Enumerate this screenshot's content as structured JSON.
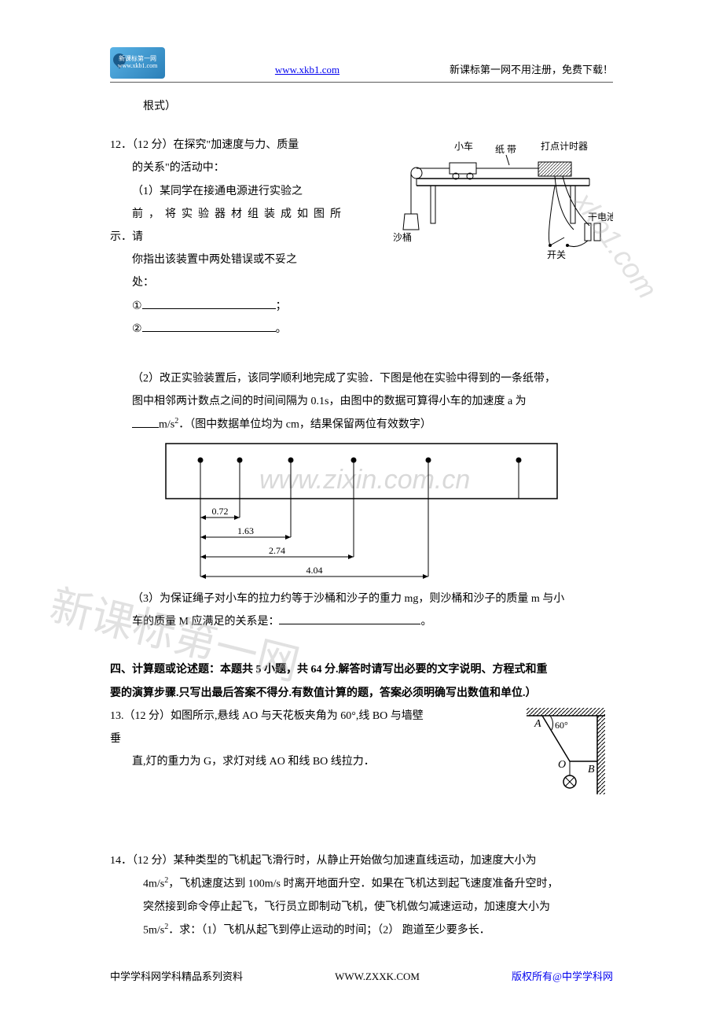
{
  "header": {
    "link": "www.xkb1.com",
    "right_text": "新课标第一网不用注册，免费下载！",
    "logo_top": "新课标第一网",
    "logo_bottom": "www.xkb1.com"
  },
  "line_genstyle": "根式）",
  "q12": {
    "title": "12．（12 分）在探究\"加速度与力、质量",
    "l2": "的关系\"的活动中：",
    "l3": "（1）某同学在接通电源进行实验之",
    "l4_a": "前",
    "l4_b": "，",
    "l4_c": "将",
    "l4_d": "实",
    "l4_e": "验",
    "l4_f": "器",
    "l4_g": "材",
    "l4_h": "组",
    "l4_i": "装",
    "l4_j": "成",
    "l4_k": "如",
    "l4_l": "图",
    "l4_m": "所",
    "l5a": "示．请",
    "l6": "你指出该装置中两处错误或不妥之",
    "l7": "处：",
    "l8": "①",
    "l8_end": "；",
    "l9": "②",
    "l9_end": "。",
    "part2_l1": "（2）改正实验装置后，该同学顺利地完成了实验．下图是他在实验中得到的一条纸带，",
    "part2_l2": "图中相邻两计数点之间的时间间隔为 0.1s，由图中的数据可算得小车的加速度 a 为",
    "part2_l3a": "m/s",
    "part2_l3b": "2",
    "part2_l3c": "．（图中数据单位均为 cm，结果保留两位有效数字）",
    "part3": "（3）为保证绳子对小车的拉力约等于沙桶和沙子的重力 mg，则沙桶和沙子的质量 m 与小",
    "part3_l2a": "车的质量 M 应满足的关系是：",
    "part3_l2_end": "。"
  },
  "diagram1": {
    "labels": {
      "cart": "小车",
      "tape": "纸 带",
      "timer": "打点计时器",
      "bucket": "沙桶",
      "battery": "干电池",
      "switch": "开关"
    },
    "color": "#000"
  },
  "tape": {
    "values": [
      "0.72",
      "1.63",
      "2.74",
      "4.04"
    ],
    "marks_x": [
      45,
      95,
      160,
      240,
      335,
      450
    ],
    "measure_starts": [
      45,
      45,
      45,
      45
    ],
    "measure_ends": [
      95,
      160,
      240,
      335
    ],
    "measure_y": [
      95,
      120,
      145,
      170
    ]
  },
  "section4": {
    "title_l1": "四、计算题或论述题：本题共 5 小题，共 64 分.解答时请写出必要的文字说明、方程式和重",
    "title_l2": "要的演算步骤.只写出最后答案不得分.有数值计算的题，答案必须明确写出数值和单位.）"
  },
  "q13": {
    "l1": "13.（12 分）如图所示,悬线 AO 与天花板夹角为 60°,线 BO 与墙壁",
    "l2": "垂",
    "l3": "直,灯的重力为 G，求灯对线 AO 和线 BO 线拉力．"
  },
  "angle_diagram": {
    "A": "A",
    "B": "B",
    "O": "O",
    "angle": "60°"
  },
  "q14": {
    "l1": "14．（12 分）某种类型的飞机起飞滑行时，从静止开始做匀加速直线运动，加速度大小为",
    "l2a": "4m/s",
    "l2b": "2",
    "l2c": "，飞机速度达到 100m/s 时离开地面升空．如果在飞机达到起飞速度准备升空时，",
    "l3": "突然接到命令停止起飞，飞行员立即制动飞机，使飞机做匀减速运动，加速度大小为",
    "l4a": "5m/s",
    "l4b": "2",
    "l4c": "．求：（1）飞机从起飞到停止运动的时间；（2） 跑道至少要多长．"
  },
  "footer": {
    "left": "中学学科网学科精品系列资料",
    "center": "WWW.ZXXK.COM",
    "right": "版权所有@中学学科网"
  },
  "watermarks": {
    "wm1": "www.zixin.com.cn",
    "wm2": "xkb1.com",
    "wm3": "新课标第一网"
  }
}
